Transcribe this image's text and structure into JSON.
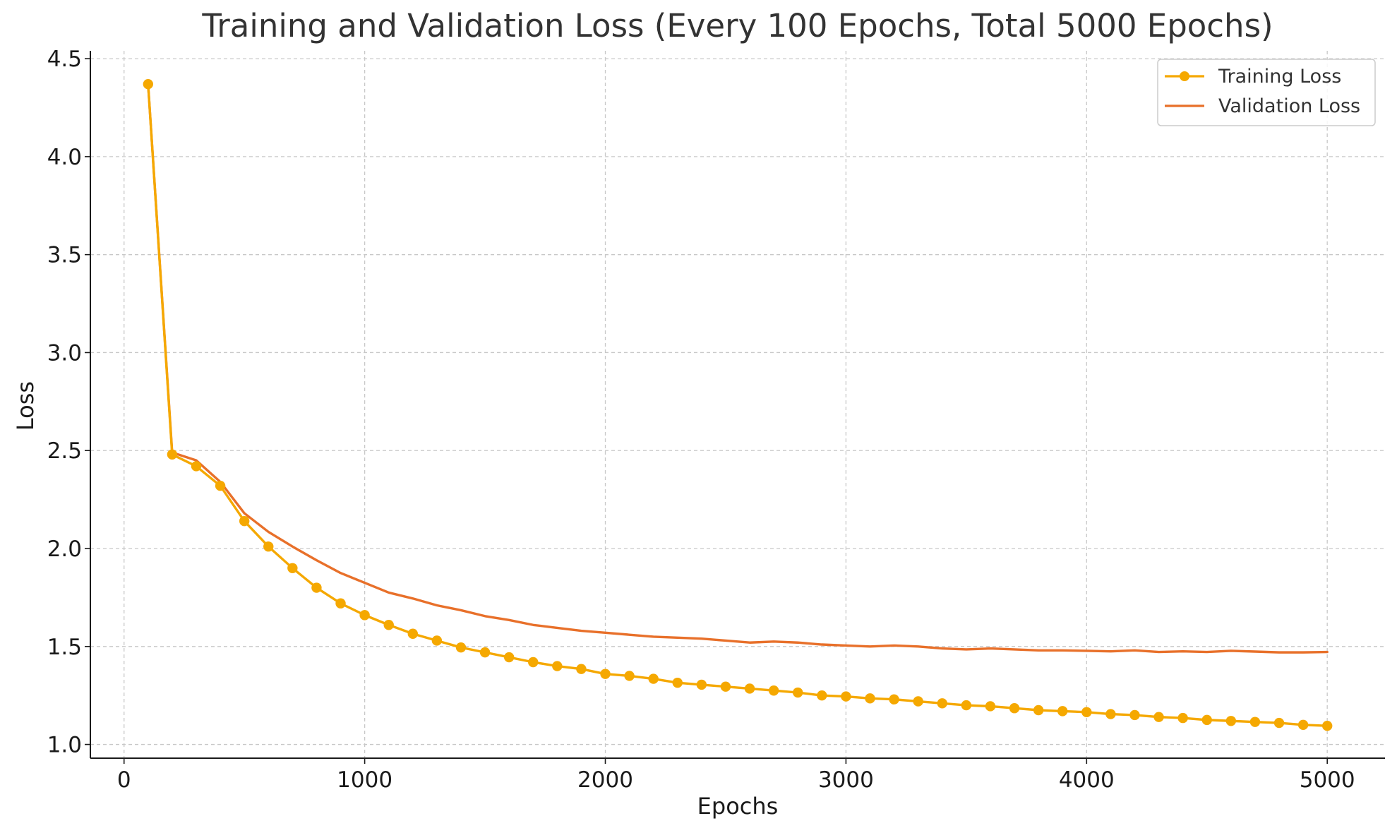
{
  "chart_data": {
    "type": "line",
    "title": "Training and Validation Loss (Every 100 Epochs, Total 5000 Epochs)",
    "xlabel": "Epochs",
    "ylabel": "Loss",
    "xlim": [
      -140,
      5240
    ],
    "ylim": [
      0.93,
      4.54
    ],
    "x_ticks": [
      0,
      1000,
      2000,
      3000,
      4000,
      5000
    ],
    "x_tick_labels": [
      "0",
      "1000",
      "2000",
      "3000",
      "4000",
      "5000"
    ],
    "y_ticks": [
      1.0,
      1.5,
      2.0,
      2.5,
      3.0,
      3.5,
      4.0,
      4.5
    ],
    "y_tick_labels": [
      "1.0",
      "1.5",
      "2.0",
      "2.5",
      "3.0",
      "3.5",
      "4.0",
      "4.5"
    ],
    "grid": true,
    "legend_position": "top-right",
    "x": [
      100,
      200,
      300,
      400,
      500,
      600,
      700,
      800,
      900,
      1000,
      1100,
      1200,
      1300,
      1400,
      1500,
      1600,
      1700,
      1800,
      1900,
      2000,
      2100,
      2200,
      2300,
      2400,
      2500,
      2600,
      2700,
      2800,
      2900,
      3000,
      3100,
      3200,
      3300,
      3400,
      3500,
      3600,
      3700,
      3800,
      3900,
      4000,
      4100,
      4200,
      4300,
      4400,
      4500,
      4600,
      4700,
      4800,
      4900,
      5000
    ],
    "series": [
      {
        "name": "Training Loss",
        "color": "#F5A800",
        "marker": "circle",
        "values": [
          4.37,
          2.48,
          2.42,
          2.32,
          2.14,
          2.01,
          1.9,
          1.8,
          1.72,
          1.66,
          1.61,
          1.565,
          1.53,
          1.495,
          1.47,
          1.445,
          1.42,
          1.4,
          1.385,
          1.36,
          1.35,
          1.335,
          1.315,
          1.305,
          1.295,
          1.285,
          1.275,
          1.265,
          1.25,
          1.245,
          1.235,
          1.23,
          1.22,
          1.21,
          1.2,
          1.195,
          1.185,
          1.175,
          1.17,
          1.165,
          1.155,
          1.15,
          1.14,
          1.135,
          1.125,
          1.12,
          1.115,
          1.11,
          1.1,
          1.095
        ]
      },
      {
        "name": "Validation Loss",
        "color": "#E8702A",
        "marker": "none",
        "values": [
          4.37,
          2.49,
          2.45,
          2.34,
          2.18,
          2.085,
          2.01,
          1.94,
          1.875,
          1.825,
          1.775,
          1.745,
          1.71,
          1.685,
          1.655,
          1.635,
          1.61,
          1.595,
          1.58,
          1.57,
          1.56,
          1.55,
          1.545,
          1.54,
          1.53,
          1.52,
          1.525,
          1.52,
          1.51,
          1.505,
          1.5,
          1.505,
          1.5,
          1.49,
          1.485,
          1.49,
          1.485,
          1.48,
          1.48,
          1.478,
          1.475,
          1.48,
          1.472,
          1.475,
          1.472,
          1.478,
          1.474,
          1.47,
          1.47,
          1.472
        ]
      }
    ]
  }
}
